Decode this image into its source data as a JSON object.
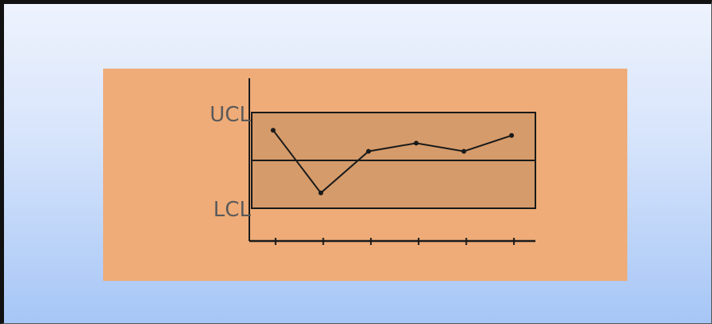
{
  "colors": {
    "panel_background": "#efac78",
    "control_band": "#d59b6a",
    "lines": "#1a1a1a",
    "frame_gradient_top": "#eef3fd",
    "frame_gradient_bottom": "#a6c6f6"
  },
  "chart_data": {
    "type": "line",
    "title": "",
    "xlabel": "",
    "ylabel": "",
    "x": [
      1,
      2,
      3,
      4,
      5,
      6
    ],
    "series": [
      {
        "values": [
          0.63,
          -0.68,
          0.19,
          0.36,
          0.19,
          0.52
        ]
      }
    ],
    "center_line": 0,
    "control_limits": {
      "ucl": 1,
      "lcl": -1
    },
    "limit_labels": {
      "ucl": "UCL",
      "lcl": "LCL"
    },
    "ylim": [
      -1.75,
      1.75
    ],
    "xlim": [
      0.5,
      6.5
    ],
    "x_tick_count": 6,
    "grid": false,
    "legend": "none"
  }
}
